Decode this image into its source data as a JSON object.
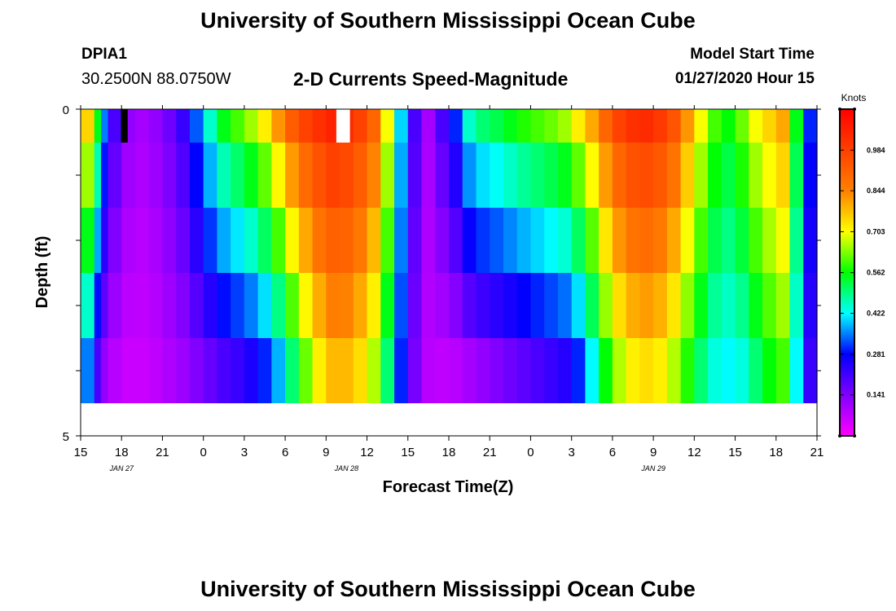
{
  "header": {
    "title": "University of Southern Mississippi Ocean Cube",
    "station": "DPIA1",
    "coordinates": "30.2500N 88.0750W",
    "subtitle": "2-D Currents Speed-Magnitude",
    "model_start_label": "Model Start Time",
    "model_start_time": "01/27/2020 Hour 15"
  },
  "footer": {
    "title": "University of Southern Mississippi Ocean Cube"
  },
  "chart_data": {
    "type": "heatmap",
    "xlabel": "Forecast Time(Z)",
    "ylabel": "Depth (ft)",
    "x_tick_labels": [
      "15",
      "18",
      "21",
      "0",
      "3",
      "6",
      "9",
      "12",
      "15",
      "18",
      "21",
      "0",
      "3",
      "6",
      "9",
      "12",
      "15",
      "18",
      "21"
    ],
    "date_labels": [
      {
        "label": "JAN 27",
        "at_hour": 3
      },
      {
        "label": "JAN 28",
        "at_hour": 19.5
      },
      {
        "label": "JAN 29",
        "at_hour": 42
      }
    ],
    "y_tick_labels": [
      "0",
      "5"
    ],
    "ylim": [
      0,
      5
    ],
    "x_range_hours": [
      0,
      54
    ],
    "colorbar": {
      "unit": "Knots",
      "ticks": [
        "0.984",
        "0.844",
        "0.703",
        "0.562",
        "0.422",
        "0.281",
        "0.141"
      ],
      "tick_values": [
        0.984,
        0.844,
        0.703,
        0.562,
        0.422,
        0.281,
        0.141
      ],
      "range": [
        0,
        1.125
      ]
    },
    "missing_colors": {
      "black_cell": "#000000",
      "white_cell": "#ffffff"
    },
    "depth_layers": 5,
    "speed_profile": {
      "hours": [
        0,
        1,
        1.5,
        2,
        3,
        4,
        5,
        6,
        7,
        8,
        9,
        10,
        11,
        12,
        13,
        14,
        15,
        16,
        17,
        18,
        19,
        20,
        21,
        22,
        23,
        24,
        25,
        26,
        27,
        28,
        29,
        30,
        31,
        32,
        33,
        34,
        35,
        36,
        37,
        38,
        39,
        40,
        41,
        42,
        43,
        44,
        45,
        46,
        47,
        48,
        49,
        50,
        51,
        52,
        53,
        54
      ],
      "surface": [
        0.75,
        0.55,
        0.35,
        0.2,
        0.12,
        0.1,
        0.12,
        0.16,
        0.22,
        0.33,
        0.45,
        0.55,
        0.6,
        0.65,
        0.72,
        0.82,
        0.92,
        0.98,
        1.02,
        1.05,
        1.03,
        0.98,
        0.9,
        0.7,
        0.4,
        0.2,
        0.1,
        0.2,
        0.3,
        0.45,
        0.5,
        0.52,
        0.55,
        0.58,
        0.6,
        0.62,
        0.65,
        0.72,
        0.8,
        0.9,
        0.98,
        1.02,
        1.03,
        1.0,
        0.94,
        0.82,
        0.7,
        0.6,
        0.56,
        0.62,
        0.7,
        0.75,
        0.8,
        0.55,
        0.3,
        0.12
      ],
      "bottom": [
        0.35,
        0.2,
        0.12,
        0.08,
        0.06,
        0.06,
        0.07,
        0.09,
        0.11,
        0.14,
        0.17,
        0.2,
        0.22,
        0.25,
        0.3,
        0.38,
        0.5,
        0.62,
        0.72,
        0.78,
        0.78,
        0.74,
        0.66,
        0.5,
        0.3,
        0.15,
        0.08,
        0.07,
        0.08,
        0.1,
        0.12,
        0.14,
        0.16,
        0.18,
        0.2,
        0.22,
        0.24,
        0.3,
        0.42,
        0.56,
        0.66,
        0.72,
        0.74,
        0.72,
        0.66,
        0.58,
        0.5,
        0.44,
        0.42,
        0.44,
        0.5,
        0.56,
        0.6,
        0.42,
        0.22,
        0.08
      ]
    },
    "missing_cells": [
      {
        "color": "black_cell",
        "hour_start": 2.95,
        "hour_end": 3.45,
        "depth_layer": 0
      },
      {
        "color": "white_cell",
        "hour_start": 18.75,
        "hour_end": 19.75,
        "depth_layer": 0
      }
    ]
  }
}
